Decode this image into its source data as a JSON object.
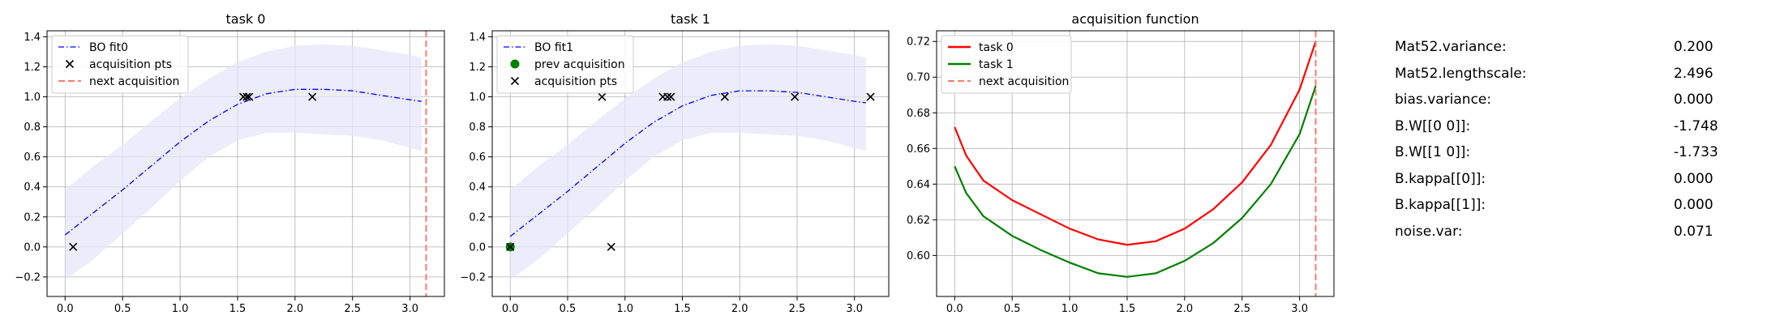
{
  "colors": {
    "fit": "#0000ff",
    "band": "#e6e6fa",
    "task0": "#ff0000",
    "task1": "#008000",
    "next": "#f87c70",
    "marker": "#000000",
    "grid": "#b0b0b0"
  },
  "chart_data": [
    {
      "type": "line",
      "title": "task 0",
      "xlabel": "",
      "ylabel": "",
      "xlim": [
        -0.1571,
        3.2987
      ],
      "ylim": [
        -0.33,
        1.44
      ],
      "xticks": [
        0.0,
        0.5,
        1.0,
        1.5,
        2.0,
        2.5,
        3.0
      ],
      "xtick_labels": [
        "0.0",
        "0.5",
        "1.0",
        "1.5",
        "2.0",
        "2.5",
        "3.0"
      ],
      "yticks": [
        -0.2,
        0.0,
        0.2,
        0.4,
        0.6,
        0.8,
        1.0,
        1.2,
        1.4
      ],
      "ytick_labels": [
        "−0.2",
        "0.0",
        "0.2",
        "0.4",
        "0.6",
        "0.8",
        "1.0",
        "1.2",
        "1.4"
      ],
      "grid": true,
      "legend_position": "top-left",
      "fit": {
        "name": "BO fit0",
        "x": [
          0.0,
          0.25,
          0.5,
          0.75,
          1.0,
          1.25,
          1.5,
          1.75,
          2.0,
          2.25,
          2.5,
          2.75,
          3.0,
          3.1
        ],
        "mean": [
          0.08,
          0.23,
          0.38,
          0.54,
          0.7,
          0.84,
          0.95,
          1.02,
          1.05,
          1.05,
          1.04,
          1.01,
          0.98,
          0.97
        ],
        "lower": [
          -0.22,
          -0.08,
          0.09,
          0.26,
          0.44,
          0.6,
          0.71,
          0.76,
          0.76,
          0.75,
          0.74,
          0.71,
          0.66,
          0.64
        ],
        "upper": [
          0.38,
          0.54,
          0.68,
          0.84,
          0.99,
          1.12,
          1.23,
          1.3,
          1.34,
          1.35,
          1.34,
          1.31,
          1.28,
          1.26
        ]
      },
      "acquisition_points": {
        "name": "acquisition pts",
        "x": [
          0.07,
          1.55,
          1.58,
          1.6,
          2.15
        ],
        "y": [
          0.0,
          1.0,
          1.0,
          1.0,
          1.0
        ]
      },
      "next_acquisition": {
        "name": "next acquisition",
        "x": 3.14
      }
    },
    {
      "type": "line",
      "title": "task 1",
      "xlabel": "",
      "ylabel": "",
      "xlim": [
        -0.1571,
        3.2987
      ],
      "ylim": [
        -0.33,
        1.44
      ],
      "xticks": [
        0.0,
        0.5,
        1.0,
        1.5,
        2.0,
        2.5,
        3.0
      ],
      "xtick_labels": [
        "0.0",
        "0.5",
        "1.0",
        "1.5",
        "2.0",
        "2.5",
        "3.0"
      ],
      "yticks": [
        -0.2,
        0.0,
        0.2,
        0.4,
        0.6,
        0.8,
        1.0,
        1.2,
        1.4
      ],
      "ytick_labels": [
        "−0.2",
        "0.0",
        "0.2",
        "0.4",
        "0.6",
        "0.8",
        "1.0",
        "1.2",
        "1.4"
      ],
      "grid": true,
      "legend_position": "top-left",
      "fit": {
        "name": "BO fit1",
        "x": [
          0.0,
          0.25,
          0.5,
          0.75,
          1.0,
          1.25,
          1.5,
          1.75,
          2.0,
          2.25,
          2.5,
          2.75,
          3.0,
          3.1
        ],
        "mean": [
          0.07,
          0.22,
          0.37,
          0.53,
          0.69,
          0.83,
          0.94,
          1.01,
          1.04,
          1.04,
          1.03,
          1.0,
          0.97,
          0.96
        ],
        "lower": [
          -0.22,
          -0.08,
          0.09,
          0.26,
          0.44,
          0.6,
          0.71,
          0.76,
          0.76,
          0.75,
          0.74,
          0.71,
          0.66,
          0.64
        ],
        "upper": [
          0.38,
          0.54,
          0.68,
          0.84,
          0.99,
          1.12,
          1.23,
          1.3,
          1.34,
          1.35,
          1.34,
          1.31,
          1.28,
          1.26
        ]
      },
      "prev_acquisition": {
        "name": "prev acquisition",
        "x": [
          0.0
        ],
        "y": [
          0.0
        ]
      },
      "acquisition_points": {
        "name": "acquisition pts",
        "x": [
          0.0,
          0.8,
          0.88,
          1.33,
          1.37,
          1.4,
          1.87,
          2.48,
          3.14
        ],
        "y": [
          0.0,
          1.0,
          0.0,
          1.0,
          1.0,
          1.0,
          1.0,
          1.0,
          1.0
        ]
      }
    },
    {
      "type": "line",
      "title": "acquisition function",
      "xlabel": "",
      "ylabel": "",
      "xlim": [
        -0.1571,
        3.2987
      ],
      "ylim": [
        0.577,
        0.726
      ],
      "xticks": [
        0.0,
        0.5,
        1.0,
        1.5,
        2.0,
        2.5,
        3.0
      ],
      "xtick_labels": [
        "0.0",
        "0.5",
        "1.0",
        "1.5",
        "2.0",
        "2.5",
        "3.0"
      ],
      "yticks": [
        0.6,
        0.62,
        0.64,
        0.66,
        0.68,
        0.7,
        0.72
      ],
      "ytick_labels": [
        "0.60",
        "0.62",
        "0.64",
        "0.66",
        "0.68",
        "0.70",
        "0.72"
      ],
      "grid": true,
      "legend_position": "top-left",
      "series": [
        {
          "name": "task 0",
          "x": [
            0.0,
            0.1,
            0.25,
            0.5,
            0.75,
            1.0,
            1.25,
            1.5,
            1.75,
            2.0,
            2.25,
            2.5,
            2.75,
            3.0,
            3.14
          ],
          "values": [
            0.672,
            0.656,
            0.642,
            0.631,
            0.623,
            0.615,
            0.609,
            0.606,
            0.608,
            0.615,
            0.626,
            0.641,
            0.662,
            0.693,
            0.72
          ]
        },
        {
          "name": "task 1",
          "x": [
            0.0,
            0.1,
            0.25,
            0.5,
            0.75,
            1.0,
            1.25,
            1.5,
            1.75,
            2.0,
            2.25,
            2.5,
            2.75,
            3.0,
            3.14
          ],
          "values": [
            0.65,
            0.635,
            0.622,
            0.611,
            0.603,
            0.596,
            0.59,
            0.588,
            0.59,
            0.597,
            0.607,
            0.621,
            0.64,
            0.668,
            0.695
          ]
        }
      ],
      "next_acquisition": {
        "name": "next acquisition",
        "x": 3.14
      }
    }
  ],
  "parameters": [
    {
      "name": "Mat52.variance:",
      "value": "0.200"
    },
    {
      "name": "Mat52.lengthscale:",
      "value": "2.496"
    },
    {
      "name": "bias.variance:",
      "value": "0.000"
    },
    {
      "name": "B.W[[0 0]]:",
      "value": "-1.748"
    },
    {
      "name": "B.W[[1 0]]:",
      "value": "-1.733"
    },
    {
      "name": "B.kappa[[0]]:",
      "value": "0.000"
    },
    {
      "name": "B.kappa[[1]]:",
      "value": "0.000"
    },
    {
      "name": "noise.var:",
      "value": "0.071"
    }
  ]
}
